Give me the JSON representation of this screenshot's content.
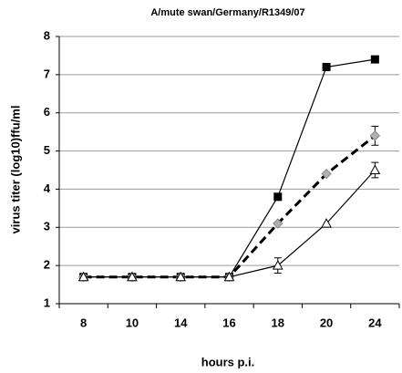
{
  "chart_data": {
    "type": "line",
    "title": "A/mute swan/Germany/R1349/07",
    "xlabel": "hours p.i.",
    "ylabel": "virus titer (log10)ffu/ml",
    "categories": [
      "8",
      "10",
      "14",
      "16",
      "18",
      "20",
      "24"
    ],
    "ylim": [
      1,
      8
    ],
    "yticks": [
      1,
      2,
      3,
      4,
      5,
      6,
      7,
      8
    ],
    "grid": true,
    "series": [
      {
        "color": "#000000",
        "marker": "square",
        "dash": false,
        "width": 1.2,
        "values": [
          1.7,
          1.7,
          1.7,
          1.7,
          3.8,
          7.2,
          7.4
        ]
      },
      {
        "color": "#000000",
        "marker": "diamond",
        "markerColor": "#b0b0b0",
        "dash": true,
        "width": 3,
        "values": [
          1.7,
          1.7,
          1.7,
          1.7,
          3.1,
          4.4,
          5.4
        ],
        "errors": [
          null,
          null,
          null,
          null,
          null,
          null,
          0.25
        ]
      },
      {
        "color": "#000000",
        "marker": "triangle",
        "markerColor": "#ffffff",
        "dash": false,
        "width": 1.2,
        "values": [
          1.7,
          1.7,
          1.7,
          1.7,
          2.0,
          3.1,
          4.5
        ],
        "errors": [
          null,
          null,
          null,
          null,
          0.2,
          null,
          0.2
        ]
      }
    ]
  }
}
